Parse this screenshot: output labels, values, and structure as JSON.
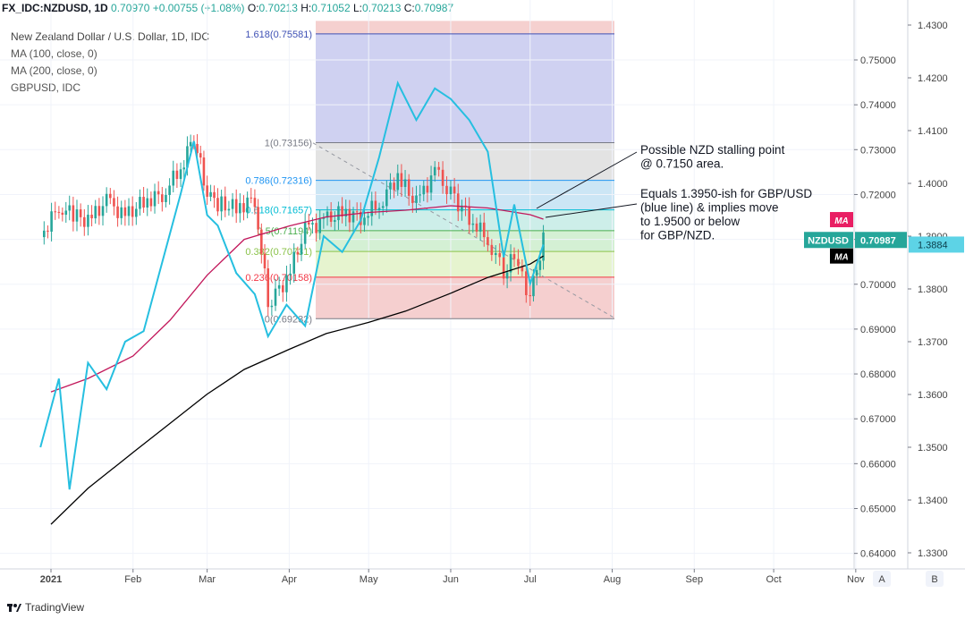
{
  "header": {
    "symbol": "FX_IDC:NZDUSD, 1D",
    "price": "0.70970",
    "change": "+0.00755 (+1.08%)",
    "open_label": "O:",
    "open": "0.70213",
    "high_label": "H:",
    "high": "0.71052",
    "low_label": "L:",
    "low": "0.70213",
    "close_label": "C:",
    "close": "0.70987"
  },
  "legend": {
    "title": "New Zealand Dollar / U.S. Dollar, 1D, IDC",
    "ma100": "MA (100, close, 0)",
    "ma200": "MA (200, close, 0)",
    "compare": "GBPUSD, IDC"
  },
  "footer": {
    "brand": "TradingView"
  },
  "chart_data": {
    "type": "candlestick",
    "title": "New Zealand Dollar / U.S. Dollar, 1D, IDC",
    "x_ticks": [
      "2021",
      "Feb",
      "Mar",
      "Apr",
      "May",
      "Jun",
      "Jul",
      "Aug",
      "Sep",
      "Oct",
      "Nov"
    ],
    "y_left": {
      "ticks": [
        "0.75000",
        "0.74000",
        "0.73000",
        "0.72000",
        "0.71000",
        "0.70000",
        "0.69000",
        "0.68000",
        "0.67000",
        "0.66000",
        "0.65000",
        "0.64000"
      ],
      "values": [
        0.75,
        0.74,
        0.73,
        0.72,
        0.71,
        0.7,
        0.69,
        0.68,
        0.67,
        0.66,
        0.65,
        0.64
      ]
    },
    "y_right": {
      "ticks": [
        "1.4300",
        "1.4200",
        "1.4100",
        "1.4000",
        "1.3900",
        "1.3800",
        "1.3700",
        "1.3600",
        "1.3500",
        "1.3400",
        "1.3300"
      ],
      "values": [
        1.43,
        1.42,
        1.41,
        1.4,
        1.39,
        1.38,
        1.37,
        1.36,
        1.35,
        1.34,
        1.33
      ]
    },
    "scale_buttons": [
      "A",
      "B"
    ],
    "price_labels": [
      {
        "text": "NZDUSD",
        "value": "0.70987",
        "color": "#26a69a"
      },
      {
        "text": "MA",
        "color": "#e91e63"
      },
      {
        "text": "MA",
        "color": "#000000"
      },
      {
        "text": "1.3884",
        "color": "#5dd3e6"
      }
    ],
    "fibonacci": [
      {
        "label": "1.618(0.75581)",
        "value": 0.75581,
        "color": "#3f51b5",
        "fill": "#cfd1f1"
      },
      {
        "label": "1(0.73156)",
        "value": 0.73156,
        "color": "#787b86",
        "fill": "#e3e3e3"
      },
      {
        "label": "0.786(0.72316)",
        "value": 0.72316,
        "color": "#2196f3",
        "fill": "#cce6f5"
      },
      {
        "label": "0.618(0.71657)",
        "value": 0.71657,
        "color": "#00bcd4",
        "fill": "#cdeee9"
      },
      {
        "label": "0.5(0.71194)",
        "value": 0.71194,
        "color": "#4caf50",
        "fill": "#d4f0d4"
      },
      {
        "label": "0.382(0.70731)",
        "value": 0.70731,
        "color": "#8bc34a",
        "fill": "#e6f4cf"
      },
      {
        "label": "0.236(0.70158)",
        "value": 0.70158,
        "color": "#f23645",
        "fill": "#f5cfcf"
      },
      {
        "label": "0(0.69232)",
        "value": 0.69232,
        "color": "#787b86",
        "fill": ""
      }
    ],
    "annotations": [
      {
        "lines": [
          "Possible NZD stalling point",
          "@ 0.7150 area."
        ]
      },
      {
        "lines": [
          "Equals 1.3950-ish for GBP/USD",
          "(blue line) & implies move",
          "to 1.9500 or below",
          "for GBP/NZD."
        ]
      }
    ],
    "series": [
      {
        "name": "MA (100, close, 0)",
        "color": "#c2185b",
        "x": [
          "2021-01-01",
          "2021-01-15",
          "2021-02-01",
          "2021-02-15",
          "2021-03-01",
          "2021-03-15",
          "2021-04-01",
          "2021-04-15",
          "2021-05-01",
          "2021-05-15",
          "2021-06-01",
          "2021-06-15",
          "2021-07-01",
          "2021-07-06"
        ],
        "values": [
          0.676,
          0.679,
          0.684,
          0.692,
          0.702,
          0.71,
          0.713,
          0.715,
          0.716,
          0.7165,
          0.7175,
          0.717,
          0.7155,
          0.7145
        ]
      },
      {
        "name": "MA (200, close, 0)",
        "color": "#000000",
        "x": [
          "2021-01-01",
          "2021-01-15",
          "2021-02-01",
          "2021-02-15",
          "2021-03-01",
          "2021-03-15",
          "2021-04-01",
          "2021-04-15",
          "2021-05-01",
          "2021-05-15",
          "2021-06-01",
          "2021-06-15",
          "2021-07-01",
          "2021-07-06"
        ],
        "values": [
          0.6465,
          0.6545,
          0.6625,
          0.669,
          0.6755,
          0.681,
          0.6855,
          0.689,
          0.6915,
          0.694,
          0.698,
          0.7015,
          0.7045,
          0.7063
        ]
      },
      {
        "name": "GBPUSD, IDC",
        "axis": "right",
        "color": "#26bfe0",
        "x": [
          "2020-12-28",
          "2021-01-04",
          "2021-01-08",
          "2021-01-15",
          "2021-01-22",
          "2021-01-29",
          "2021-02-05",
          "2021-02-12",
          "2021-02-19",
          "2021-02-24",
          "2021-03-01",
          "2021-03-05",
          "2021-03-12",
          "2021-03-19",
          "2021-03-24",
          "2021-03-31",
          "2021-04-07",
          "2021-04-14",
          "2021-04-21",
          "2021-04-28",
          "2021-05-05",
          "2021-05-12",
          "2021-05-19",
          "2021-05-26",
          "2021-06-01",
          "2021-06-08",
          "2021-06-15",
          "2021-06-21",
          "2021-06-25",
          "2021-07-01",
          "2021-07-06"
        ],
        "values": [
          1.35,
          1.363,
          1.342,
          1.366,
          1.361,
          1.37,
          1.372,
          1.385,
          1.398,
          1.408,
          1.394,
          1.392,
          1.383,
          1.379,
          1.371,
          1.377,
          1.373,
          1.39,
          1.387,
          1.393,
          1.405,
          1.419,
          1.412,
          1.418,
          1.416,
          1.412,
          1.406,
          1.386,
          1.396,
          1.381,
          1.3884
        ]
      },
      {
        "name": "NZDUSD close",
        "color": "#26a69a",
        "x": [
          "2020-12-28",
          "2021-01-04",
          "2021-01-08",
          "2021-01-15",
          "2021-01-22",
          "2021-01-29",
          "2021-02-05",
          "2021-02-12",
          "2021-02-19",
          "2021-02-24",
          "2021-03-01",
          "2021-03-05",
          "2021-03-12",
          "2021-03-19",
          "2021-03-24",
          "2021-03-31",
          "2021-04-07",
          "2021-04-14",
          "2021-04-21",
          "2021-04-28",
          "2021-05-05",
          "2021-05-12",
          "2021-05-19",
          "2021-05-26",
          "2021-06-01",
          "2021-06-08",
          "2021-06-15",
          "2021-06-21",
          "2021-06-25",
          "2021-07-01",
          "2021-07-06"
        ],
        "values": [
          0.7105,
          0.7175,
          0.716,
          0.714,
          0.7185,
          0.715,
          0.7185,
          0.72,
          0.726,
          0.733,
          0.72,
          0.718,
          0.717,
          0.719,
          0.696,
          0.701,
          0.712,
          0.714,
          0.716,
          0.715,
          0.718,
          0.724,
          0.718,
          0.725,
          0.72,
          0.715,
          0.71,
          0.703,
          0.706,
          0.697,
          0.70987
        ]
      }
    ]
  }
}
